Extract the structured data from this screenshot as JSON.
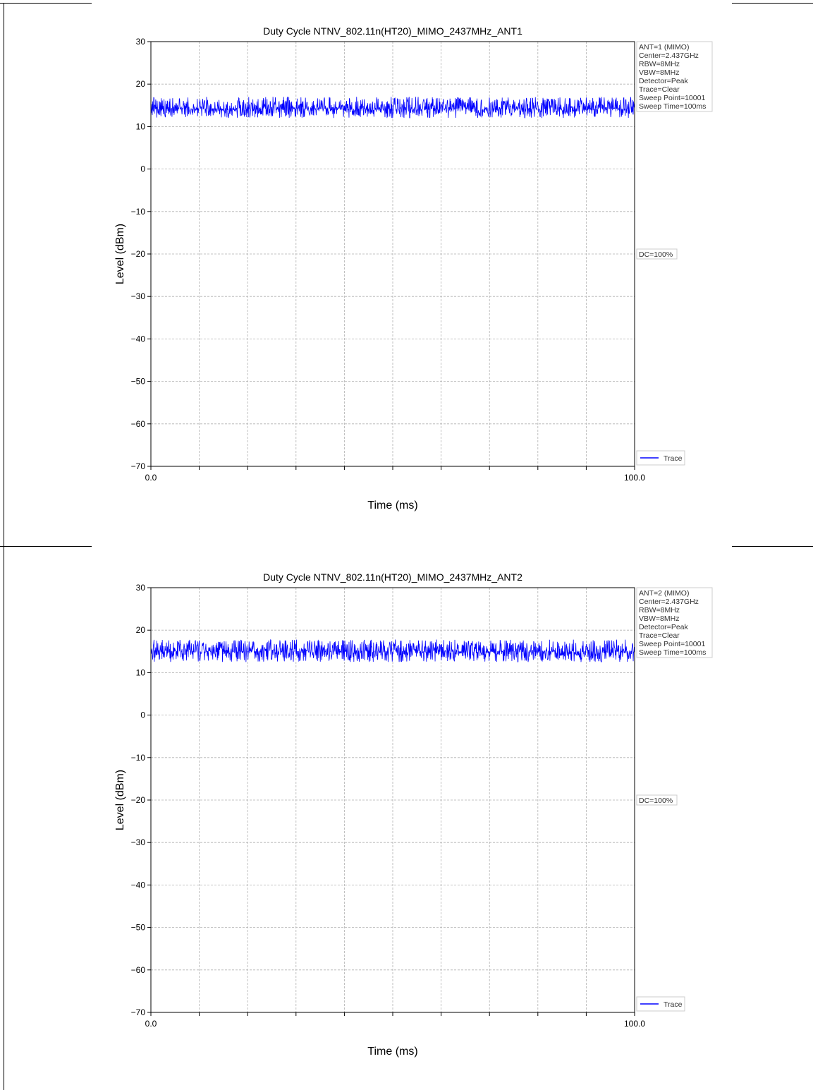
{
  "chart_data": [
    {
      "type": "line",
      "title": "Duty Cycle NTNV_802.11n(HT20)_MIMO_2437MHz_ANT1",
      "xlabel": "Time (ms)",
      "ylabel": "Level (dBm)",
      "xlim": [
        0.0,
        100.0
      ],
      "ylim": [
        -70,
        30
      ],
      "x_tick_labels": [
        "0.0",
        "100.0"
      ],
      "y_tick_labels": [
        "30",
        "20",
        "10",
        "0",
        "−10",
        "−20",
        "−30",
        "−40",
        "−50",
        "−60",
        "−70"
      ],
      "grid": true,
      "series": [
        {
          "name": "Trace",
          "color": "#0000ff",
          "baseline": 14.2,
          "low": 12.0,
          "high": 17.0,
          "points": 10001
        }
      ],
      "legend_position": "bottom-right",
      "info_box": [
        "ANT=1 (MIMO)",
        "Center=2.437GHz",
        "RBW=8MHz",
        "VBW=8MHz",
        "Detector=Peak",
        "Trace=Clear",
        "Sweep Point=10001",
        "Sweep Time=100ms"
      ],
      "annotation": "DC=100%"
    },
    {
      "type": "line",
      "title": "Duty Cycle NTNV_802.11n(HT20)_MIMO_2437MHz_ANT2",
      "xlabel": "Time (ms)",
      "ylabel": "Level (dBm)",
      "xlim": [
        0.0,
        100.0
      ],
      "ylim": [
        -70,
        30
      ],
      "x_tick_labels": [
        "0.0",
        "100.0"
      ],
      "y_tick_labels": [
        "30",
        "20",
        "10",
        "0",
        "−10",
        "−20",
        "−30",
        "−40",
        "−50",
        "−60",
        "−70"
      ],
      "grid": true,
      "series": [
        {
          "name": "Trace",
          "color": "#0000ff",
          "baseline": 15.0,
          "low": 12.5,
          "high": 17.8,
          "points": 10001
        }
      ],
      "legend_position": "bottom-right",
      "info_box": [
        "ANT=2 (MIMO)",
        "Center=2.437GHz",
        "RBW=8MHz",
        "VBW=8MHz",
        "Detector=Peak",
        "Trace=Clear",
        "Sweep Point=10001",
        "Sweep Time=100ms"
      ],
      "annotation": "DC=100%"
    }
  ]
}
